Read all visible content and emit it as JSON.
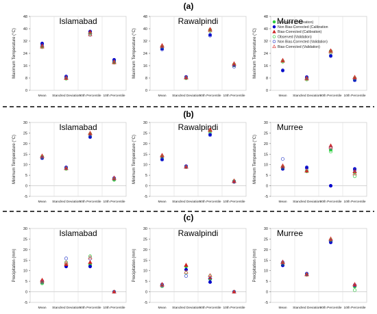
{
  "rows": [
    {
      "label": "(a)",
      "ylabel": "Maximum Temperature (°C)",
      "ylim": [
        0,
        48
      ],
      "ticks": [
        0,
        8,
        16,
        24,
        32,
        40,
        48
      ]
    },
    {
      "label": "(b)",
      "ylabel": "Minimum Temperature (°C)",
      "ylim": [
        -5,
        30
      ],
      "ticks": [
        -5,
        0,
        5,
        10,
        15,
        20,
        25,
        30
      ]
    },
    {
      "label": "(c)",
      "ylabel": "Precipitation (mm)",
      "ylim": [
        -5,
        30
      ],
      "ticks": [
        -5,
        0,
        5,
        10,
        15,
        20,
        25,
        30
      ]
    }
  ],
  "categories": [
    "Mean",
    "Standred Deviation",
    "90th Percentile",
    "10th Percentile"
  ],
  "sites": [
    "Islamabad",
    "Rawalpindi",
    "Murree"
  ],
  "legend": {
    "placement": "top-right of Murree panel (a)",
    "entries": [
      {
        "name": "Observed (Calibration)",
        "marker": "circle-filled",
        "color": "#2ecc40"
      },
      {
        "name": "Non Bias-Corrected (Calibration",
        "marker": "circle-filled",
        "color": "#0000cc"
      },
      {
        "name": "Bias-Corrected (Calibration)",
        "marker": "triangle-filled",
        "color": "#cc2222"
      },
      {
        "name": "Observed (Validation)",
        "marker": "circle-open",
        "color": "#2ecc40"
      },
      {
        "name": "Non Bias-Corrected (Validation)",
        "marker": "circle-open",
        "color": "#3344cc"
      },
      {
        "name": "Bias-Corrected (Validation)",
        "marker": "triangle-open",
        "color": "#dd4444"
      }
    ]
  },
  "chart_data": [
    {
      "type": "scatter",
      "row": 0,
      "title": "Islamabad",
      "ylabel": "Maximum Temperature (°C)",
      "ylim": [
        0,
        48
      ],
      "categories": [
        "Mean",
        "Standred Deviation",
        "90th Percentile",
        "10th Percentile"
      ],
      "series": [
        {
          "name": "Observed (Calibration)",
          "values": [
            28.5,
            7.8,
            37.2,
            18.3
          ]
        },
        {
          "name": "Non Bias-Corrected (Calibration",
          "values": [
            30.4,
            9.0,
            38.2,
            19.8
          ]
        },
        {
          "name": "Bias-Corrected (Calibration)",
          "values": [
            29.0,
            8.2,
            37.8,
            18.7
          ]
        },
        {
          "name": "Observed (Validation)",
          "values": [
            28.0,
            7.5,
            36.5,
            17.9
          ]
        },
        {
          "name": "Non Bias-Corrected (Validation)",
          "values": [
            29.6,
            8.6,
            36.0,
            19.0
          ]
        },
        {
          "name": "Bias-Corrected (Validation)",
          "values": [
            28.3,
            7.9,
            36.3,
            18.1
          ]
        }
      ]
    },
    {
      "type": "scatter",
      "row": 0,
      "title": "Rawalpindi",
      "ylabel": "Maximum Temperature (°C)",
      "ylim": [
        0,
        48
      ],
      "categories": [
        "Mean",
        "Standred Deviation",
        "90th Percentile",
        "10th Percentile"
      ],
      "series": [
        {
          "name": "Observed (Calibration)",
          "values": [
            28.5,
            8.0,
            39.3,
            16.8
          ]
        },
        {
          "name": "Non Bias-Corrected (Calibration",
          "values": [
            27.0,
            8.7,
            36.0,
            16.2
          ]
        },
        {
          "name": "Bias-Corrected (Calibration)",
          "values": [
            29.2,
            8.4,
            39.7,
            17.4
          ]
        },
        {
          "name": "Observed (Validation)",
          "values": [
            28.0,
            7.8,
            38.5,
            16.3
          ]
        },
        {
          "name": "Non Bias-Corrected (Validation)",
          "values": [
            26.5,
            8.5,
            35.5,
            15.3
          ]
        },
        {
          "name": "Bias-Corrected (Validation)",
          "values": [
            28.7,
            8.2,
            39.0,
            16.9
          ]
        }
      ]
    },
    {
      "type": "scatter",
      "row": 0,
      "title": "Murree",
      "ylabel": "Maximum Temperature (°C)",
      "ylim": [
        0,
        48
      ],
      "categories": [
        "Mean",
        "Standred Deviation",
        "90th Percentile",
        "10th Percentile"
      ],
      "series": [
        {
          "name": "Observed (Calibration)",
          "values": [
            19.0,
            7.4,
            25.5,
            8.0
          ]
        },
        {
          "name": "Non Bias-Corrected (Calibration",
          "values": [
            13.0,
            8.6,
            22.5,
            6.8
          ]
        },
        {
          "name": "Bias-Corrected (Calibration)",
          "values": [
            19.6,
            8.0,
            25.8,
            8.6
          ]
        },
        {
          "name": "Observed (Validation)",
          "values": [
            18.6,
            7.0,
            24.5,
            7.6
          ]
        },
        {
          "name": "Non Bias-Corrected (Validation)",
          "values": [
            12.8,
            8.3,
            22.2,
            6.4
          ]
        },
        {
          "name": "Bias-Corrected (Validation)",
          "values": [
            19.2,
            7.6,
            25.2,
            8.3
          ]
        }
      ]
    },
    {
      "type": "scatter",
      "row": 1,
      "title": "Islamabad",
      "ylabel": "Minimum Temperature (°C)",
      "ylim": [
        -5,
        30
      ],
      "categories": [
        "Mean",
        "Standred Deviation",
        "90th Percentile",
        "10th Percentile"
      ],
      "series": [
        {
          "name": "Observed (Calibration)",
          "values": [
            13.8,
            8.2,
            24.6,
            3.0
          ]
        },
        {
          "name": "Non Bias-Corrected (Calibration",
          "values": [
            13.3,
            8.7,
            23.2,
            3.6
          ]
        },
        {
          "name": "Bias-Corrected (Calibration)",
          "values": [
            14.2,
            8.4,
            25.0,
            3.8
          ]
        },
        {
          "name": "Observed (Validation)",
          "values": [
            13.6,
            8.0,
            24.2,
            2.8
          ]
        },
        {
          "name": "Non Bias-Corrected (Validation)",
          "values": [
            13.0,
            8.5,
            23.0,
            3.4
          ]
        },
        {
          "name": "Bias-Corrected (Validation)",
          "values": [
            13.9,
            8.3,
            24.8,
            3.5
          ]
        }
      ]
    },
    {
      "type": "scatter",
      "row": 1,
      "title": "Rawalpindi",
      "ylabel": "Minimum Temperature (°C)",
      "ylim": [
        -5,
        30
      ],
      "categories": [
        "Mean",
        "Standred Deviation",
        "90th Percentile",
        "10th Percentile"
      ],
      "series": [
        {
          "name": "Observed (Calibration)",
          "values": [
            14.0,
            9.0,
            26.0,
            2.2
          ]
        },
        {
          "name": "Non Bias-Corrected (Calibration",
          "values": [
            12.6,
            9.3,
            24.3,
            2.0
          ]
        },
        {
          "name": "Bias-Corrected (Calibration)",
          "values": [
            14.5,
            9.1,
            26.6,
            2.4
          ]
        },
        {
          "name": "Observed (Validation)",
          "values": [
            13.6,
            8.8,
            25.5,
            1.9
          ]
        },
        {
          "name": "Non Bias-Corrected (Validation)",
          "values": [
            12.3,
            9.0,
            24.0,
            1.8
          ]
        },
        {
          "name": "Bias-Corrected (Validation)",
          "values": [
            14.2,
            8.9,
            26.2,
            2.1
          ]
        }
      ]
    },
    {
      "type": "scatter",
      "row": 1,
      "title": "Murree",
      "ylabel": "Minimum Temperature (°C)",
      "ylim": [
        -5,
        30
      ],
      "categories": [
        "Mean",
        "Standred Deviation",
        "90th Percentile",
        "10th Percentile"
      ],
      "series": [
        {
          "name": "Observed (Calibration)",
          "values": [
            9.0,
            7.0,
            17.0,
            6.3
          ]
        },
        {
          "name": "Non Bias-Corrected (Calibration",
          "values": [
            8.0,
            8.7,
            0.0,
            8.0
          ]
        },
        {
          "name": "Bias-Corrected (Calibration)",
          "values": [
            9.5,
            7.2,
            19.0,
            6.9
          ]
        },
        {
          "name": "Observed (Validation)",
          "values": [
            8.6,
            6.8,
            16.2,
            4.5
          ]
        },
        {
          "name": "Non Bias-Corrected (Validation)",
          "values": [
            12.7,
            8.3,
            18.0,
            7.5
          ]
        },
        {
          "name": "Bias-Corrected (Validation)",
          "values": [
            9.2,
            7.1,
            18.3,
            5.8
          ]
        }
      ]
    },
    {
      "type": "scatter",
      "row": 2,
      "title": "Islamabad",
      "ylabel": "Precipitation (mm)",
      "ylim": [
        -5,
        30
      ],
      "categories": [
        "Mean",
        "Standred Deviation",
        "90th Percentile",
        "10th Percentile"
      ],
      "series": [
        {
          "name": "Observed (Calibration)",
          "values": [
            4.3,
            12.5,
            12.8,
            0.0
          ]
        },
        {
          "name": "Non Bias-Corrected (Calibration",
          "values": [
            5.1,
            12.0,
            12.0,
            0.0
          ]
        },
        {
          "name": "Bias-Corrected (Calibration)",
          "values": [
            5.6,
            13.0,
            14.0,
            0.0
          ]
        },
        {
          "name": "Observed (Validation)",
          "values": [
            4.0,
            14.0,
            16.8,
            0.0
          ]
        },
        {
          "name": "Non Bias-Corrected (Validation)",
          "values": [
            4.6,
            15.8,
            15.7,
            0.0
          ]
        },
        {
          "name": "Bias-Corrected (Validation)",
          "values": [
            5.0,
            13.8,
            16.3,
            0.0
          ]
        }
      ]
    },
    {
      "type": "scatter",
      "row": 2,
      "title": "Rawalpindi",
      "ylabel": "Precipitation (mm)",
      "ylim": [
        -5,
        30
      ],
      "categories": [
        "Mean",
        "Standred Deviation",
        "90th Percentile",
        "10th Percentile"
      ],
      "series": [
        {
          "name": "Observed (Calibration)",
          "values": [
            3.0,
            12.0,
            6.0,
            0.0
          ]
        },
        {
          "name": "Non Bias-Corrected (Calibration",
          "values": [
            3.4,
            10.5,
            4.6,
            0.0
          ]
        },
        {
          "name": "Bias-Corrected (Calibration)",
          "values": [
            3.6,
            12.7,
            6.8,
            0.0
          ]
        },
        {
          "name": "Observed (Validation)",
          "values": [
            2.6,
            9.0,
            7.5,
            0.0
          ]
        },
        {
          "name": "Non Bias-Corrected (Validation)",
          "values": [
            3.0,
            7.5,
            6.2,
            0.0
          ]
        },
        {
          "name": "Bias-Corrected (Validation)",
          "values": [
            3.2,
            9.5,
            7.8,
            0.0
          ]
        }
      ]
    },
    {
      "type": "scatter",
      "row": 2,
      "title": "Murree",
      "ylabel": "Precipitation (mm)",
      "ylim": [
        -5,
        30
      ],
      "categories": [
        "Mean",
        "Standred Deviation",
        "90th Percentile",
        "10th Percentile"
      ],
      "series": [
        {
          "name": "Observed (Calibration)",
          "values": [
            13.6,
            8.2,
            24.2,
            2.5
          ]
        },
        {
          "name": "Non Bias-Corrected (Calibration",
          "values": [
            12.5,
            8.6,
            23.4,
            3.2
          ]
        },
        {
          "name": "Bias-Corrected (Calibration)",
          "values": [
            14.2,
            8.4,
            24.8,
            3.6
          ]
        },
        {
          "name": "Observed (Validation)",
          "values": [
            13.3,
            8.0,
            24.6,
            0.8
          ]
        },
        {
          "name": "Non Bias-Corrected (Validation)",
          "values": [
            14.0,
            8.4,
            24.0,
            3.0
          ]
        },
        {
          "name": "Bias-Corrected (Validation)",
          "values": [
            13.9,
            8.2,
            25.2,
            3.4
          ]
        }
      ]
    }
  ]
}
